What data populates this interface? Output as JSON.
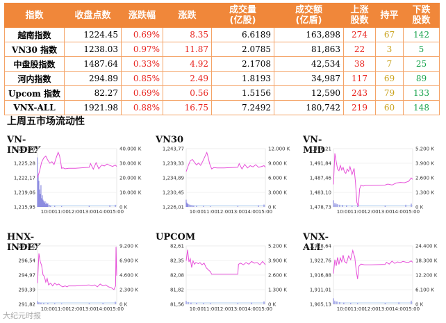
{
  "table": {
    "headers": [
      "指数",
      "收盘点数",
      "涨跌幅",
      "涨跌",
      "成交量\n(亿股)",
      "成交额\n(亿盾)",
      "上涨\n股数",
      "持平",
      "下跌\n股数"
    ],
    "rows": [
      {
        "name": "越南指数",
        "close": "1224.45",
        "pct": "0.69%",
        "chg": "8.35",
        "vol": "6.6189",
        "val": "163,898",
        "up": "274",
        "flat": "67",
        "down": "142"
      },
      {
        "name": "VN30 指数",
        "close": "1238.03",
        "pct": "0.97%",
        "chg": "11.87",
        "vol": "2.0785",
        "val": "81,863",
        "up": "22",
        "flat": "3",
        "down": "5"
      },
      {
        "name": "中盘股指数",
        "close": "1487.64",
        "pct": "0.33%",
        "chg": "4.92",
        "vol": "2.1708",
        "val": "42,534",
        "up": "38",
        "flat": "7",
        "down": "25"
      },
      {
        "name": "河内指数",
        "close": "294.89",
        "pct": "0.85%",
        "chg": "2.49",
        "vol": "1.8193",
        "val": "34,987",
        "up": "117",
        "flat": "69",
        "down": "89"
      },
      {
        "name": "Upcom 指数",
        "close": "82.27",
        "pct": "0.69%",
        "chg": "0.56",
        "vol": "1.5156",
        "val": "12,590",
        "up": "243",
        "flat": "79",
        "down": "133"
      },
      {
        "name": "VNX-ALL",
        "close": "1921.98",
        "pct": "0.88%",
        "chg": "16.75",
        "vol": "7.2492",
        "val": "180,742",
        "up": "219",
        "flat": "60",
        "down": "148"
      }
    ]
  },
  "section_title": "上周五市场流动性",
  "watermark": "大纪元时报",
  "colors": {
    "header_bg": "#f0873a",
    "up": "#e8241f",
    "down": "#15a24a",
    "flat": "#c9a21c",
    "price_line": "#e64fd9",
    "volume": "#8c8ce0",
    "baseline": "#9cc3ee"
  },
  "chart_data": [
    {
      "type": "line",
      "title": "VN-INDEX",
      "x_ticks": [
        "10:00",
        "11:00",
        "12:00",
        "13:00",
        "14:00",
        "15:00"
      ],
      "y_ticks_left": [
        "1,228,39",
        "1,225,28",
        "1,222,17",
        "1,219,06",
        "1,215,95"
      ],
      "y_ticks_right": [
        "40.000 K",
        "30.000 K",
        "20.000 K",
        "10.000 K",
        "0 K"
      ],
      "ylim_left": [
        1215.95,
        1228.39
      ],
      "ylim_right": [
        0,
        40000
      ],
      "price_x": [
        9.25,
        9.4,
        9.55,
        9.7,
        9.85,
        10.0,
        10.15,
        10.3,
        10.45,
        10.6,
        10.75,
        10.85,
        10.95,
        11.0,
        11.1,
        11.25,
        11.5,
        12.0,
        13.0,
        13.1,
        13.3,
        13.5,
        13.7,
        13.9,
        14.1,
        14.3,
        14.5,
        14.7,
        14.9,
        15.0
      ],
      "price_y": [
        1222.2,
        1223.6,
        1225.5,
        1226.4,
        1226.8,
        1225.9,
        1225.3,
        1225.6,
        1225.0,
        1226.4,
        1227.6,
        1226.9,
        1225.2,
        1224.2,
        1224.3,
        1224.1,
        1224.2,
        1224.2,
        1224.4,
        1225.2,
        1224.0,
        1225.4,
        1224.1,
        1224.9,
        1224.7,
        1225.1,
        1224.8,
        1224.6,
        1224.9,
        1224.6
      ],
      "vol_x": [
        9.25,
        9.3,
        9.35,
        9.4,
        9.45,
        9.5,
        9.55,
        9.6,
        9.65,
        9.7,
        9.75,
        9.8,
        9.85,
        9.9,
        9.95,
        10.0,
        10.1,
        10.2,
        10.5,
        11.0,
        13.0,
        14.5,
        14.9
      ],
      "vol": [
        34000,
        22000,
        18000,
        12000,
        9000,
        15000,
        6000,
        8000,
        5000,
        4000,
        3000,
        4000,
        2000,
        3000,
        2000,
        2500,
        1500,
        1000,
        800,
        600,
        700,
        1200,
        1500
      ]
    },
    {
      "type": "line",
      "title": "VN30",
      "x_ticks": [
        "10:00",
        "11:00",
        "12:00",
        "13:00",
        "14:00",
        "15:00"
      ],
      "y_ticks_left": [
        "1,243,77",
        "1,239,33",
        "1,234,89",
        "1,230,45",
        "1,226,01"
      ],
      "y_ticks_right": [
        "12.000 K",
        "9.000 K",
        "6.000 K",
        "3.000 K",
        "0 K"
      ],
      "ylim_left": [
        1226.01,
        1243.77
      ],
      "ylim_right": [
        0,
        12000
      ],
      "price_x": [
        9.25,
        9.4,
        9.55,
        9.7,
        9.85,
        10.0,
        10.15,
        10.3,
        10.45,
        10.6,
        10.75,
        10.85,
        10.95,
        11.1,
        11.25,
        11.5,
        12.0,
        13.0,
        13.1,
        13.3,
        13.5,
        13.7,
        13.9,
        14.1,
        14.3,
        14.5,
        14.7,
        14.9,
        15.0
      ],
      "price_y": [
        1236.8,
        1238.6,
        1240.1,
        1240.5,
        1239.6,
        1238.8,
        1239.4,
        1238.7,
        1239.9,
        1241.3,
        1242.6,
        1241.1,
        1239.2,
        1237.6,
        1238.0,
        1237.9,
        1237.9,
        1238.1,
        1239.2,
        1237.6,
        1239.0,
        1237.9,
        1238.6,
        1238.2,
        1238.9,
        1238.1,
        1238.3,
        1238.6,
        1238.1
      ],
      "vol_x": [
        9.25,
        9.3,
        9.35,
        9.4,
        9.5,
        9.6,
        9.7,
        9.8,
        10.0,
        10.5,
        11.0,
        13.0,
        14.5,
        14.9
      ],
      "vol": [
        1500,
        900,
        700,
        600,
        500,
        400,
        350,
        300,
        250,
        200,
        150,
        200,
        350,
        500
      ]
    },
    {
      "type": "line",
      "title": "VN-MID",
      "x_ticks": [
        "10:00",
        "11:00",
        "12:00",
        "13:00",
        "14:00",
        "15:00"
      ],
      "y_ticks_left": [
        "1,496,21",
        "1,491,84",
        "1,487,46",
        "1,483,10",
        "1,478,73"
      ],
      "y_ticks_right": [
        "5.200 K",
        "3.900 K",
        "2.600 K",
        "1.300 K",
        "0 K"
      ],
      "ylim_left": [
        1478.73,
        1496.21
      ],
      "ylim_right": [
        0,
        5200
      ],
      "price_x": [
        9.25,
        9.35,
        9.45,
        9.55,
        9.65,
        9.75,
        9.85,
        9.95,
        10.05,
        10.15,
        10.25,
        10.35,
        10.45,
        10.6,
        10.75,
        10.85,
        10.95,
        11.05,
        11.15,
        11.25,
        11.4,
        11.6,
        12.0,
        13.0,
        13.2,
        13.5,
        13.8,
        14.1,
        14.4,
        14.7,
        14.9,
        15.0
      ],
      "price_y": [
        1485.5,
        1494.8,
        1492.3,
        1490.1,
        1489.6,
        1491.2,
        1489.8,
        1490.6,
        1489.2,
        1488.8,
        1490.1,
        1489.4,
        1490.8,
        1488.5,
        1490.3,
        1486.1,
        1480.1,
        1478.9,
        1484.2,
        1485.3,
        1485.0,
        1485.2,
        1485.2,
        1485.3,
        1485.6,
        1485.3,
        1485.9,
        1486.1,
        1486.0,
        1486.4,
        1487.4,
        1487.0
      ],
      "vol_x": [
        9.25,
        9.35,
        9.45,
        9.55,
        9.7,
        9.9,
        10.2,
        10.6,
        11.0,
        13.0,
        14.5,
        14.9
      ],
      "vol": [
        600,
        350,
        300,
        250,
        200,
        180,
        150,
        120,
        100,
        120,
        200,
        300
      ]
    },
    {
      "type": "line",
      "title": "HNX-INDEX",
      "x_ticks": [
        "10:00",
        "11:00",
        "12:00",
        "13:00",
        "14:00",
        "15:00"
      ],
      "y_ticks_left": [
        "298,11",
        "296,54",
        "294,97",
        "293,39",
        "291,82"
      ],
      "y_ticks_right": [
        "9.200 K",
        "6.900 K",
        "4.600 K",
        "2.300 K",
        "0 K"
      ],
      "ylim_left": [
        291.82,
        298.11
      ],
      "ylim_right": [
        0,
        9200
      ],
      "price_x": [
        9.25,
        9.35,
        9.45,
        9.55,
        9.65,
        9.75,
        9.85,
        9.95,
        10.05,
        10.2,
        10.35,
        10.5,
        10.65,
        10.8,
        10.95,
        11.1,
        11.25,
        11.4,
        11.5,
        12.0,
        13.0,
        13.2,
        13.4,
        13.6,
        13.8,
        14.0,
        14.2,
        14.4,
        14.6,
        14.8,
        14.92,
        14.95,
        15.0
      ],
      "price_y": [
        294.1,
        297.3,
        296.4,
        296.0,
        295.0,
        294.8,
        294.2,
        294.6,
        293.9,
        294.1,
        293.8,
        294.1,
        293.9,
        294.0,
        293.8,
        293.7,
        293.8,
        293.7,
        293.8,
        293.8,
        293.9,
        293.8,
        293.9,
        293.7,
        294.0,
        293.8,
        293.9,
        293.7,
        293.6,
        293.4,
        293.8,
        298.0,
        294.9
      ],
      "vol_x": [
        9.25,
        9.35,
        9.5,
        9.7,
        10.0,
        10.5,
        11.0,
        13.0,
        14.0,
        14.9
      ],
      "vol": [
        500,
        300,
        250,
        200,
        180,
        150,
        120,
        150,
        200,
        400
      ]
    },
    {
      "type": "line",
      "title": "UPCOM",
      "x_ticks": [
        "10:00",
        "11:00",
        "12:00",
        "13:00",
        "14:00",
        "15:00"
      ],
      "y_ticks_left": [
        "82,61",
        "82,35",
        "82,08",
        "81,82",
        "81,56"
      ],
      "y_ticks_right": [
        "5.200 K",
        "3.900 K",
        "2.600 K",
        "1.300 K",
        "0 K"
      ],
      "ylim_left": [
        81.56,
        82.61
      ],
      "ylim_right": [
        0,
        5200
      ],
      "price_x": [
        9.25,
        9.35,
        9.45,
        9.55,
        9.65,
        9.75,
        9.85,
        9.95,
        10.05,
        10.15,
        10.25,
        10.4,
        10.55,
        10.7,
        10.85,
        11.0,
        11.1,
        11.25,
        11.5,
        12.0,
        13.0,
        13.05,
        13.2,
        13.4,
        13.6,
        13.8,
        14.0,
        14.2,
        14.4,
        14.6,
        14.8,
        15.0
      ],
      "price_y": [
        82.34,
        82.54,
        82.32,
        82.38,
        82.22,
        82.34,
        82.28,
        82.31,
        82.3,
        82.29,
        82.31,
        82.27,
        82.3,
        82.22,
        82.18,
        82.15,
        82.1,
        82.1,
        82.1,
        82.1,
        82.1,
        82.28,
        82.3,
        82.27,
        82.31,
        82.28,
        82.33,
        82.3,
        82.31,
        82.27,
        82.33,
        82.27
      ],
      "vol_x": [
        9.25,
        9.4,
        9.6,
        10.0,
        10.5,
        11.0,
        13.0,
        14.0,
        14.9
      ],
      "vol": [
        300,
        200,
        150,
        120,
        100,
        90,
        100,
        150,
        250
      ]
    },
    {
      "type": "line",
      "title": "VNX-ALL",
      "x_ticks": [
        "10:00",
        "11:00",
        "12:00",
        "13:00",
        "14:00",
        "15:00"
      ],
      "y_ticks_left": [
        "1,928,64",
        "1,922,76",
        "1,916,88",
        "1,911,01",
        "1,905,13"
      ],
      "y_ticks_right": [
        "24.400 K",
        "18.300 K",
        "12.200 K",
        "6.100 K",
        "0 K"
      ],
      "ylim_left": [
        1905.13,
        1928.64
      ],
      "ylim_right": [
        0,
        24400
      ],
      "price_x": [
        9.25,
        9.35,
        9.45,
        9.55,
        9.65,
        9.75,
        9.85,
        9.95,
        10.05,
        10.2,
        10.35,
        10.5,
        10.65,
        10.8,
        10.9,
        11.0,
        11.1,
        11.25,
        11.5,
        12.0,
        13.0,
        13.1,
        13.3,
        13.5,
        13.7,
        13.9,
        14.1,
        14.3,
        14.5,
        14.7,
        14.9,
        15.0
      ],
      "price_y": [
        1917.5,
        1923.1,
        1920.6,
        1924.0,
        1921.2,
        1923.8,
        1922.2,
        1924.9,
        1922.4,
        1921.7,
        1924.6,
        1923.1,
        1926.8,
        1924.0,
        1918.9,
        1915.3,
        1920.5,
        1921.3,
        1921.0,
        1921.0,
        1921.2,
        1922.0,
        1921.3,
        1922.5,
        1921.6,
        1922.2,
        1921.9,
        1922.4,
        1922.1,
        1922.0,
        1922.6,
        1922.0
      ],
      "vol_x": [
        9.25,
        9.35,
        9.5,
        9.7,
        10.0,
        10.5,
        11.0,
        13.0,
        14.0,
        14.9
      ],
      "vol": [
        2500,
        1500,
        1200,
        900,
        700,
        500,
        400,
        500,
        800,
        1500
      ]
    }
  ]
}
